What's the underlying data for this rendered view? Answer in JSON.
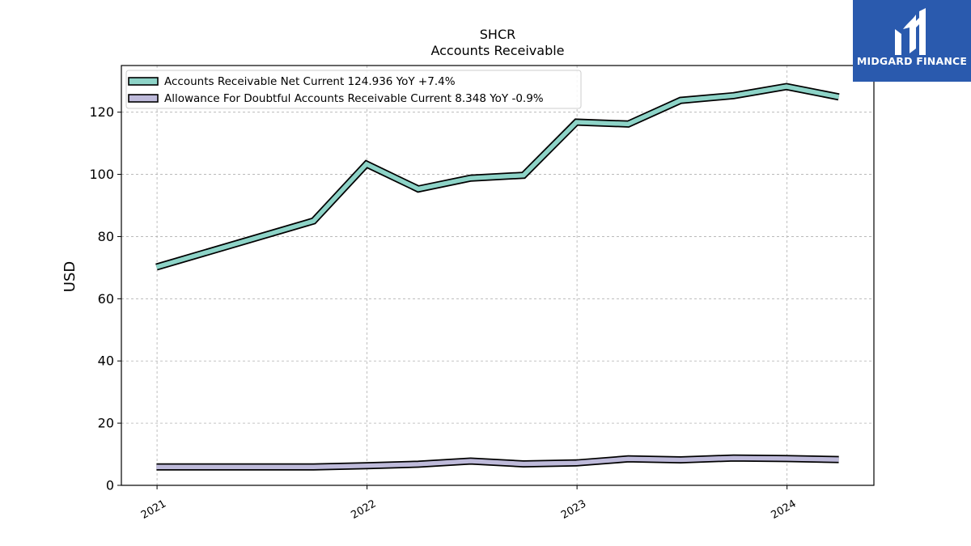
{
  "chart_data": {
    "type": "line",
    "ticker": "SHCR",
    "title": "Accounts Receivable",
    "ylabel": "USD",
    "xlabel": "",
    "ylim": [
      0,
      135
    ],
    "xlim": [
      "2020-10-31",
      "2024-05-31"
    ],
    "grid": true,
    "legend_position": "top-left",
    "y_ticks": [
      0,
      20,
      40,
      60,
      80,
      100,
      120
    ],
    "x_ticks": [
      {
        "date": "2021-01-01",
        "label": "2021"
      },
      {
        "date": "2022-01-01",
        "label": "2022"
      },
      {
        "date": "2023-01-01",
        "label": "2023"
      },
      {
        "date": "2024-01-01",
        "label": "2024"
      }
    ],
    "series": [
      {
        "name": "Accounts Receivable Net Current",
        "legend_label": "Accounts Receivable Net Current  124.936 YoY +7.4%",
        "color": "#8dd3c7",
        "points": [
          [
            "2020-12-31",
            70.2
          ],
          [
            "2021-09-30",
            85.0
          ],
          [
            "2021-12-31",
            103.3
          ],
          [
            "2022-03-31",
            95.3
          ],
          [
            "2022-06-30",
            98.8
          ],
          [
            "2022-09-30",
            99.7
          ],
          [
            "2022-12-31",
            116.8
          ],
          [
            "2023-03-31",
            116.2
          ],
          [
            "2023-06-30",
            123.8
          ],
          [
            "2023-09-30",
            125.3
          ],
          [
            "2023-12-31",
            128.2
          ],
          [
            "2024-03-31",
            124.9
          ]
        ]
      },
      {
        "name": "Allowance For Doubtful Accounts Receivable Current",
        "legend_label": "Allowance For Doubtful Accounts Receivable Current  8.348 YoY -0.9%",
        "color": "#bebada",
        "points": [
          [
            "2020-12-31",
            5.9
          ],
          [
            "2021-09-30",
            5.9
          ],
          [
            "2021-12-31",
            6.3
          ],
          [
            "2022-03-31",
            6.8
          ],
          [
            "2022-06-30",
            7.8
          ],
          [
            "2022-09-30",
            6.9
          ],
          [
            "2022-12-31",
            7.2
          ],
          [
            "2023-03-31",
            8.5
          ],
          [
            "2023-06-30",
            8.2
          ],
          [
            "2023-09-30",
            8.8
          ],
          [
            "2023-12-31",
            8.6
          ],
          [
            "2024-03-31",
            8.3
          ]
        ]
      }
    ]
  },
  "brand": {
    "name": "MIDGARD FINANCE",
    "color": "#2a5aae"
  }
}
